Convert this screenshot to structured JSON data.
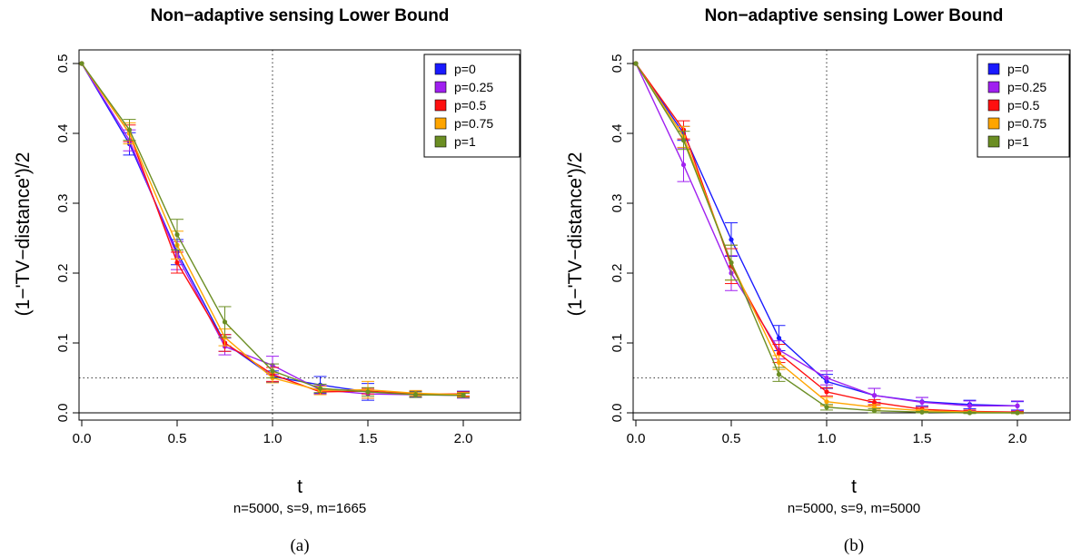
{
  "colors": {
    "p=0": "#1a1aff",
    "p=0.25": "#a020f0",
    "p=0.5": "#ff1010",
    "p=0.75": "#ffa500",
    "p=1": "#6b8e23"
  },
  "chart_data": [
    {
      "type": "line",
      "title": "Non−adaptive sensing Lower Bound",
      "xlabel": "t",
      "ylabel": "(1−'TV−distance')/2",
      "subtitle": "n=5000, s=9, m=1665",
      "caption": "(a)",
      "xlim": [
        0,
        2
      ],
      "ylim": [
        0,
        0.5
      ],
      "x_ticks": [
        "0.0",
        "0.5",
        "1.0",
        "1.5",
        "2.0"
      ],
      "y_ticks": [
        "0.0",
        "0.1",
        "0.2",
        "0.3",
        "0.4",
        "0.5"
      ],
      "reference_lines": {
        "vertical_x": 1.0,
        "horizontal_y": 0.05,
        "baseline_y": 0
      },
      "legend_position": "top-right",
      "x": [
        0,
        0.25,
        0.5,
        0.75,
        1.0,
        1.25,
        1.5,
        1.75,
        2.0
      ],
      "series": [
        {
          "name": "p=0",
          "values": [
            0.5,
            0.385,
            0.23,
            0.1,
            0.052,
            0.04,
            0.03,
            0.027,
            0.027
          ],
          "errors": [
            0,
            0.016,
            0.018,
            0.012,
            0.008,
            0.012,
            0.012,
            0.004,
            0.004
          ]
        },
        {
          "name": "p=0.25",
          "values": [
            0.5,
            0.39,
            0.225,
            0.095,
            0.068,
            0.033,
            0.027,
            0.026,
            0.025
          ],
          "errors": [
            0,
            0.015,
            0.02,
            0.012,
            0.013,
            0.006,
            0.006,
            0.004,
            0.004
          ]
        },
        {
          "name": "p=0.5",
          "values": [
            0.5,
            0.4,
            0.215,
            0.1,
            0.055,
            0.03,
            0.031,
            0.027,
            0.027
          ],
          "errors": [
            0,
            0.012,
            0.015,
            0.012,
            0.01,
            0.004,
            0.004,
            0.003,
            0.003
          ]
        },
        {
          "name": "p=0.75",
          "values": [
            0.5,
            0.4,
            0.24,
            0.108,
            0.05,
            0.032,
            0.033,
            0.028,
            0.026
          ],
          "errors": [
            0,
            0.015,
            0.02,
            0.012,
            0.007,
            0.006,
            0.012,
            0.004,
            0.003
          ]
        },
        {
          "name": "p=1",
          "values": [
            0.5,
            0.405,
            0.255,
            0.13,
            0.06,
            0.035,
            0.03,
            0.026,
            0.025
          ],
          "errors": [
            0,
            0.015,
            0.022,
            0.022,
            0.01,
            0.006,
            0.006,
            0.004,
            0.003
          ]
        }
      ]
    },
    {
      "type": "line",
      "title": "Non−adaptive sensing Lower Bound",
      "xlabel": "t",
      "ylabel": "(1−'TV−distance')/2",
      "subtitle": "n=5000, s=9, m=5000",
      "caption": "(b)",
      "xlim": [
        0,
        2
      ],
      "ylim": [
        0,
        0.5
      ],
      "x_ticks": [
        "0.0",
        "0.5",
        "1.0",
        "1.5",
        "2.0"
      ],
      "y_ticks": [
        "0.0",
        "0.1",
        "0.2",
        "0.3",
        "0.4",
        "0.5"
      ],
      "reference_lines": {
        "vertical_x": 1.0,
        "horizontal_y": 0.05,
        "baseline_y": 0
      },
      "legend_position": "top-right",
      "x": [
        0,
        0.25,
        0.5,
        0.75,
        1.0,
        1.25,
        1.5,
        1.75,
        2.0
      ],
      "series": [
        {
          "name": "p=0",
          "values": [
            0.5,
            0.4,
            0.248,
            0.107,
            0.045,
            0.025,
            0.016,
            0.012,
            0.01
          ],
          "errors": [
            0,
            0.01,
            0.024,
            0.018,
            0.01,
            0.01,
            0.006,
            0.006,
            0.006
          ]
        },
        {
          "name": "p=0.25",
          "values": [
            0.5,
            0.355,
            0.2,
            0.09,
            0.05,
            0.025,
            0.015,
            0.01,
            0.01
          ],
          "errors": [
            0,
            0.024,
            0.025,
            0.013,
            0.01,
            0.01,
            0.007,
            0.007,
            0.007
          ]
        },
        {
          "name": "p=0.5",
          "values": [
            0.5,
            0.405,
            0.21,
            0.085,
            0.03,
            0.015,
            0.005,
            0.002,
            0.001
          ],
          "errors": [
            0,
            0.013,
            0.025,
            0.013,
            0.006,
            0.004,
            0.003,
            0.002,
            0.001
          ]
        },
        {
          "name": "p=0.75",
          "values": [
            0.5,
            0.395,
            0.215,
            0.072,
            0.016,
            0.008,
            0.003,
            0.001,
            0
          ],
          "errors": [
            0,
            0.015,
            0.025,
            0.01,
            0.006,
            0.004,
            0.002,
            0.001,
            0.001
          ]
        },
        {
          "name": "p=1",
          "values": [
            0.5,
            0.39,
            0.215,
            0.055,
            0.008,
            0.003,
            0.001,
            0,
            0
          ],
          "errors": [
            0,
            0.013,
            0.025,
            0.01,
            0.004,
            0.003,
            0.001,
            0.001,
            0.001
          ]
        }
      ]
    }
  ]
}
